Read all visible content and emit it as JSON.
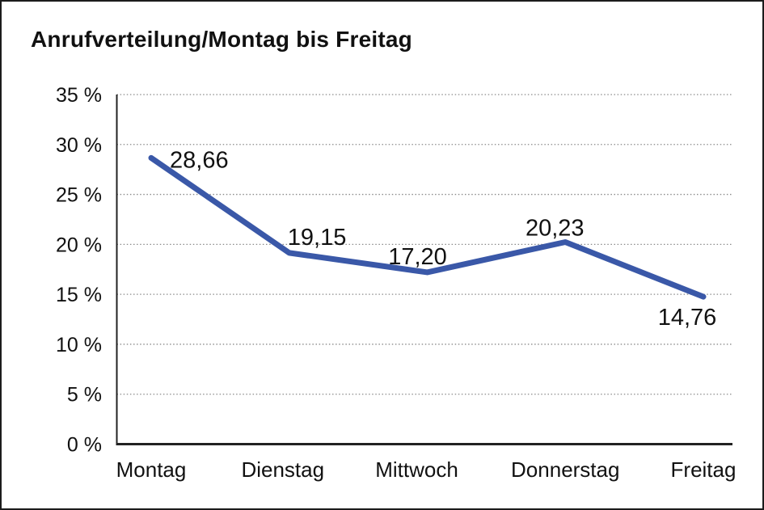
{
  "page": {
    "background_color": "#ffffff",
    "border_color": "#1b1b1b"
  },
  "header": {
    "title": "Anrufverteilung/Montag bis Freitag"
  },
  "chart_data": {
    "type": "line",
    "title": "Anrufverteilung/Montag bis Freitag",
    "categories": [
      "Montag",
      "Dienstag",
      "Mittwoch",
      "Donnerstag",
      "Freitag"
    ],
    "values": [
      28.66,
      19.15,
      17.2,
      20.23,
      14.76
    ],
    "point_labels": [
      "28,66",
      "19,15",
      "17,20",
      "20,23",
      "14,76"
    ],
    "series_name": "Anrufverteilung",
    "unit": "%",
    "y_ticks": [
      0,
      5,
      10,
      15,
      20,
      25,
      30,
      35
    ],
    "y_tick_labels": [
      "0 %",
      "5 %",
      "10 %",
      "15 %",
      "20 %",
      "25 %",
      "30 %",
      "35 %"
    ],
    "ylim": [
      0,
      35
    ],
    "xlabel": "",
    "ylabel": "",
    "grid": "horizontal-dotted",
    "legend": "none",
    "line_color": "#3A58A8",
    "axis_color": "#222222",
    "grid_color": "#8a8a8a",
    "text_color": "#111111"
  }
}
